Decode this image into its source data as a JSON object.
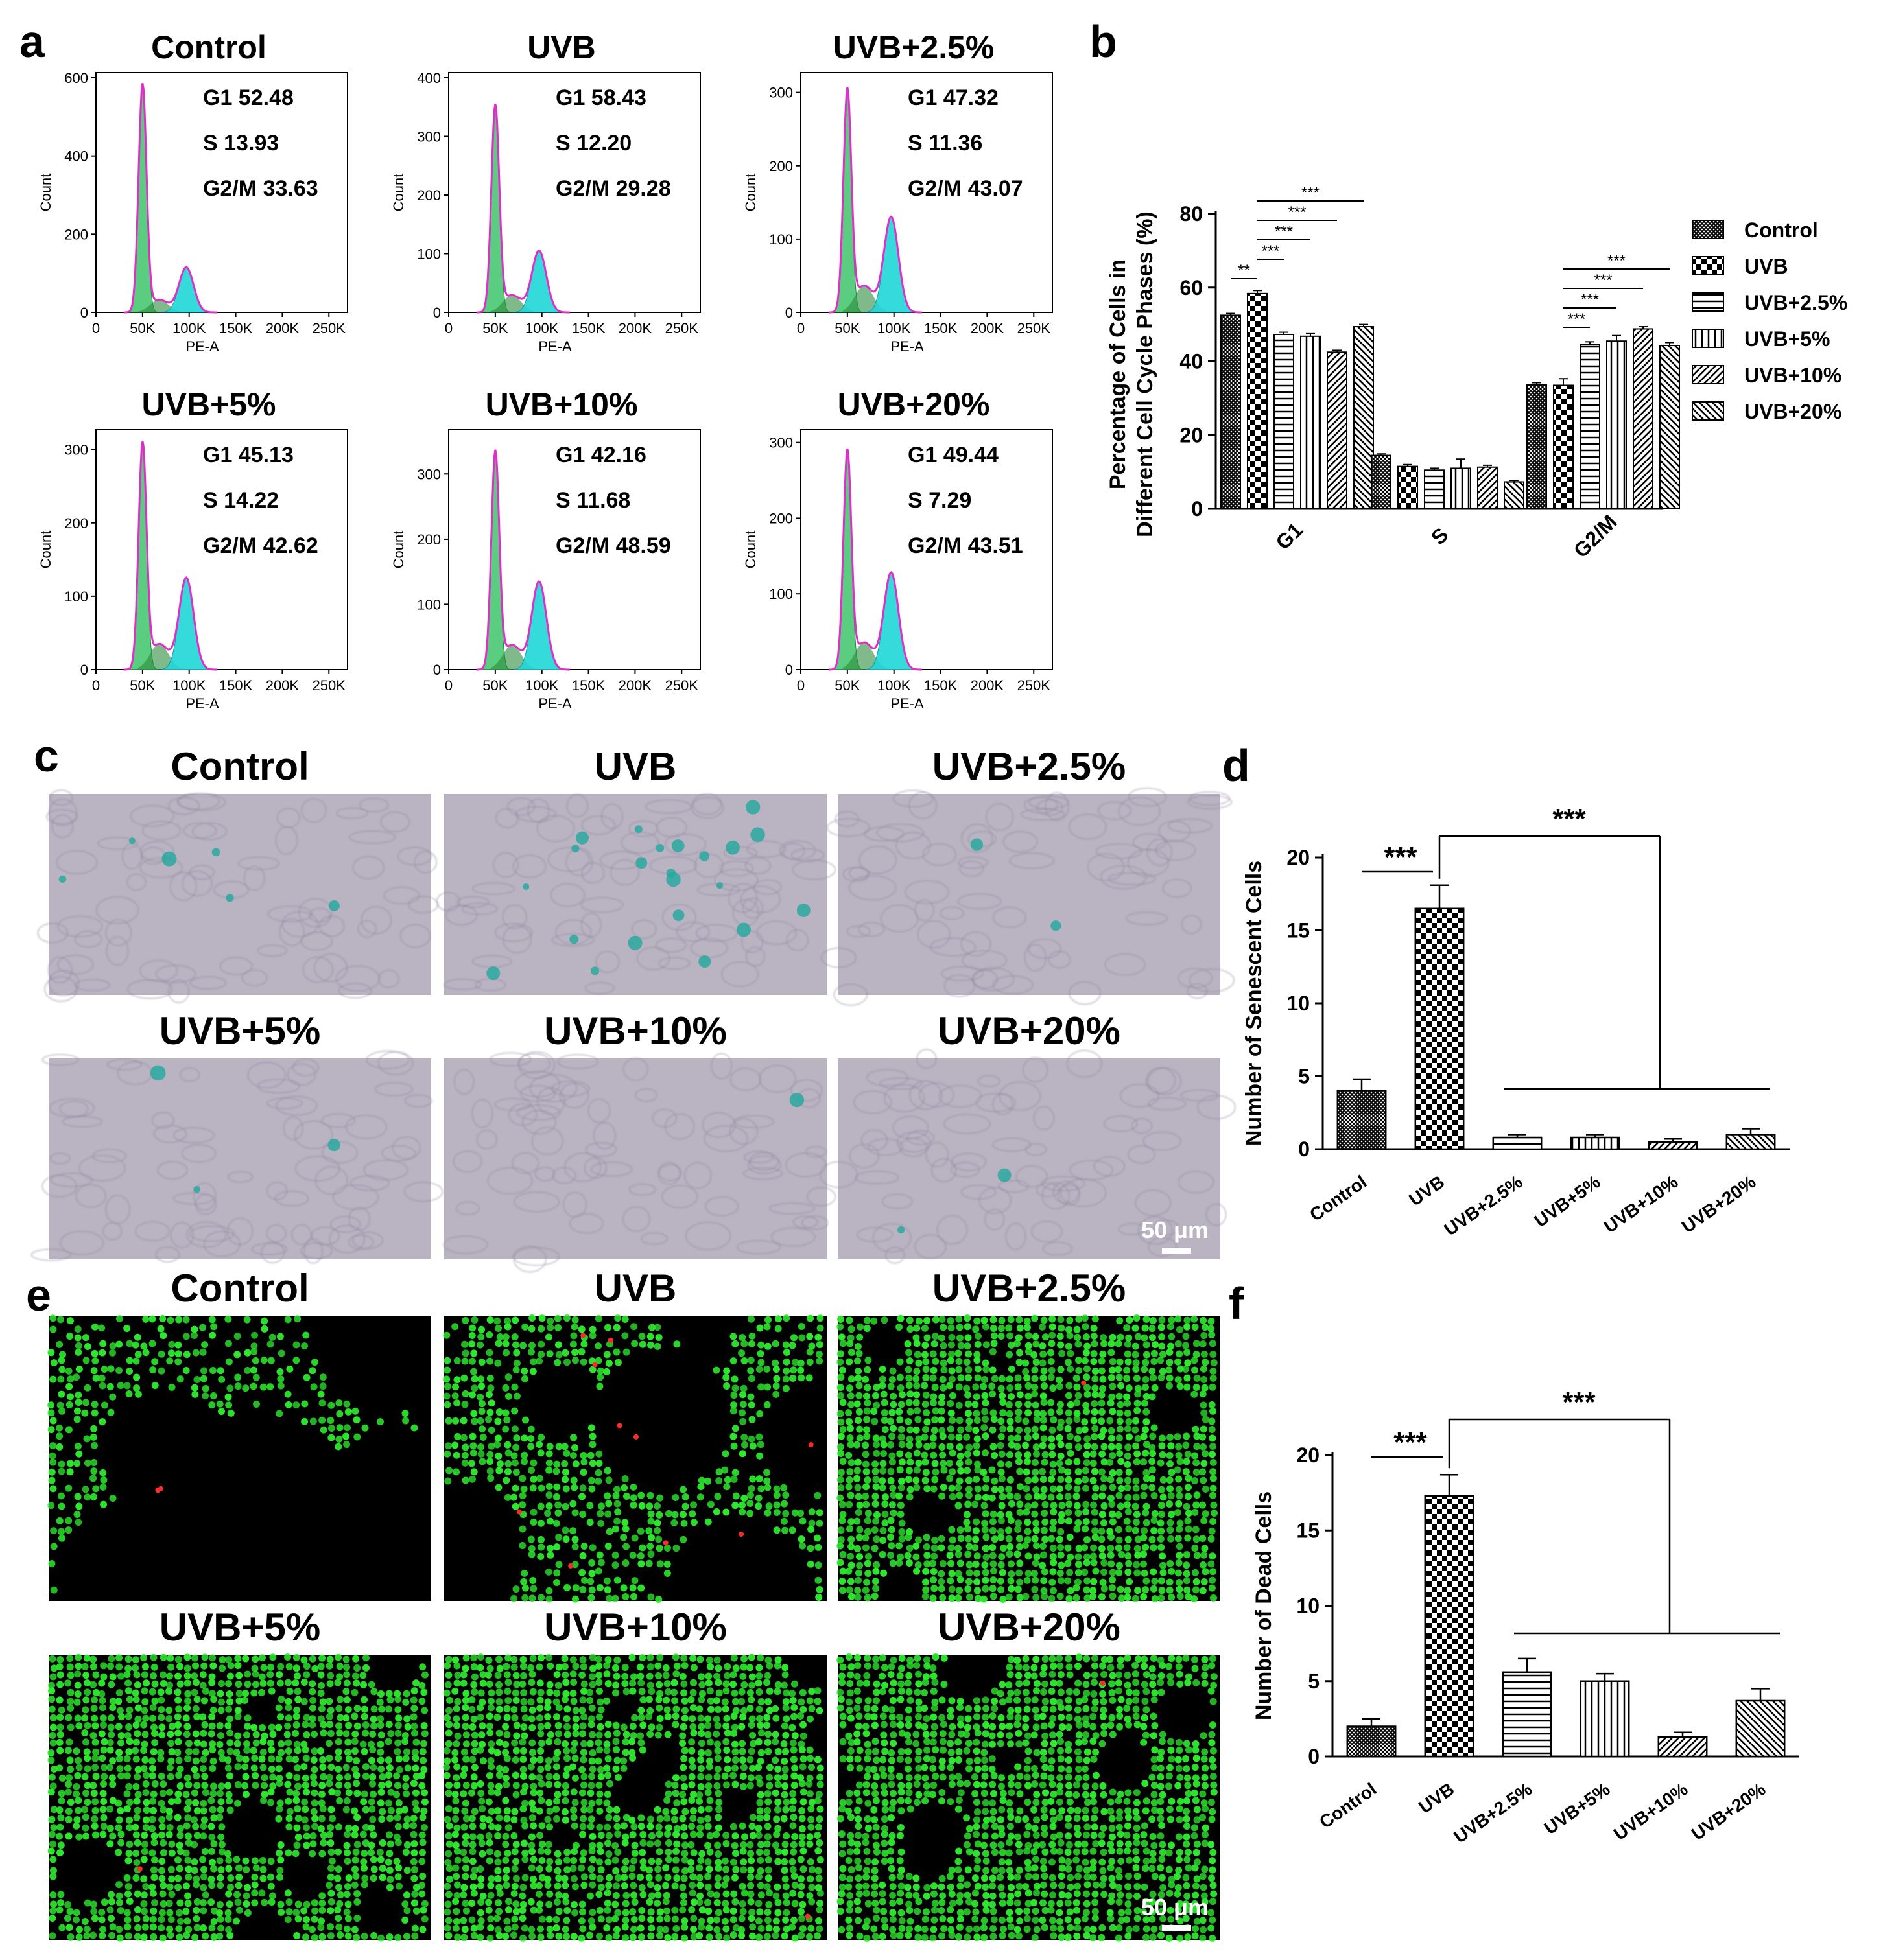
{
  "panel_letters": [
    "a",
    "b",
    "c",
    "d",
    "e",
    "f"
  ],
  "colors": {
    "g1_fill": "#3ec46a",
    "g2_fill": "#1fd6d6",
    "fit_line": "#e02fc8",
    "bar_fill": "#ffffff",
    "micro_c_bg": "#b9b3c2",
    "micro_c_cell": "#2aa8a0",
    "micro_e_bg": "#000000",
    "micro_e_live": "#2ee82e",
    "micro_e_dead": "#ff2a2a"
  },
  "scale_bar": "50 μm",
  "groups": [
    "Control",
    "UVB",
    "UVB+2.5%",
    "UVB+5%",
    "UVB+10%",
    "UVB+20%"
  ],
  "chart_data": [
    {
      "id": "a",
      "type": "histogram-panels",
      "xlabel": "PE-A",
      "ylabel": "Count",
      "x_ticks": [
        "0",
        "50K",
        "100K",
        "150K",
        "200K",
        "250K"
      ],
      "panels": [
        {
          "title": "Control",
          "y_ticks": [
            "0",
            "200",
            "400",
            "600"
          ],
          "ymax": 600,
          "peak": 580,
          "g2_peak": 115,
          "g1": "G1 52.48",
          "s": "S 13.93",
          "g2m": "G2/M 33.63"
        },
        {
          "title": "UVB",
          "y_ticks": [
            "0",
            "100",
            "200",
            "300",
            "400"
          ],
          "ymax": 400,
          "peak": 350,
          "g2_peak": 105,
          "g1": "G1 58.43",
          "s": "S 12.20",
          "g2m": "G2/M 29.28"
        },
        {
          "title": "UVB+2.5%",
          "y_ticks": [
            "0",
            "100",
            "200",
            "300"
          ],
          "ymax": 320,
          "peak": 300,
          "g2_peak": 130,
          "g1": "G1 47.32",
          "s": "S 11.36",
          "g2m": "G2/M 43.07"
        },
        {
          "title": "UVB+5%",
          "y_ticks": [
            "0",
            "100",
            "200",
            "300"
          ],
          "ymax": 320,
          "peak": 305,
          "g2_peak": 125,
          "g1": "G1 45.13",
          "s": "S 14.22",
          "g2m": "G2/M 42.62"
        },
        {
          "title": "UVB+10%",
          "y_ticks": [
            "0",
            "100",
            "200",
            "300"
          ],
          "ymax": 360,
          "peak": 330,
          "g2_peak": 135,
          "g1": "G1 42.16",
          "s": "S 11.68",
          "g2m": "G2/M 48.59"
        },
        {
          "title": "UVB+20%",
          "y_ticks": [
            "0",
            "100",
            "200",
            "300"
          ],
          "ymax": 310,
          "peak": 285,
          "g2_peak": 128,
          "g1": "G1 49.44",
          "s": "S 7.29",
          "g2m": "G2/M 43.51"
        }
      ]
    },
    {
      "id": "b",
      "type": "bar",
      "ylabel": "Percentage of Cells in Different Cell Cycle Phases (%)",
      "ylabel_lines": [
        "Percentage of Cells in",
        "Different Cell Cycle Phases (%)"
      ],
      "categories": [
        "G1",
        "S",
        "G2/M"
      ],
      "ylim": [
        0,
        80
      ],
      "y_ticks": [
        "0",
        "20",
        "40",
        "60",
        "80"
      ],
      "legend_position": "right",
      "series": [
        {
          "name": "Control",
          "pattern": "dense",
          "values": [
            52.5,
            14.5,
            33.6
          ],
          "errors": [
            0.5,
            0.4,
            0.6
          ]
        },
        {
          "name": "UVB",
          "pattern": "check",
          "values": [
            58.4,
            11.5,
            33.5
          ],
          "errors": [
            0.8,
            0.5,
            1.8
          ]
        },
        {
          "name": "UVB+2.5%",
          "pattern": "hlines",
          "values": [
            47.3,
            10.5,
            44.5
          ],
          "errors": [
            0.6,
            0.5,
            0.8
          ]
        },
        {
          "name": "UVB+5%",
          "pattern": "vlines",
          "values": [
            46.8,
            11.0,
            45.5
          ],
          "errors": [
            0.7,
            2.5,
            1.5
          ]
        },
        {
          "name": "UVB+10%",
          "pattern": "diag",
          "values": [
            42.5,
            11.3,
            48.8
          ],
          "errors": [
            0.5,
            0.5,
            0.6
          ]
        },
        {
          "name": "UVB+20%",
          "pattern": "diag2",
          "values": [
            49.4,
            7.3,
            44.3
          ],
          "errors": [
            0.6,
            0.4,
            0.8
          ]
        }
      ],
      "significance": [
        {
          "group": 0,
          "from": 0,
          "to": 1,
          "label": "**"
        },
        {
          "group": 0,
          "from": 1,
          "to": 2,
          "label": "***"
        },
        {
          "group": 0,
          "from": 1,
          "to": 3,
          "label": "***"
        },
        {
          "group": 0,
          "from": 1,
          "to": 4,
          "label": "***"
        },
        {
          "group": 0,
          "from": 1,
          "to": 5,
          "label": "***"
        },
        {
          "group": 2,
          "from": 1,
          "to": 2,
          "label": "***"
        },
        {
          "group": 2,
          "from": 1,
          "to": 3,
          "label": "***"
        },
        {
          "group": 2,
          "from": 1,
          "to": 4,
          "label": "***"
        },
        {
          "group": 2,
          "from": 1,
          "to": 5,
          "label": "***"
        }
      ]
    },
    {
      "id": "d",
      "type": "bar",
      "ylabel": "Number of Senescent Cells",
      "categories": [
        "Control",
        "UVB",
        "UVB+2.5%",
        "UVB+5%",
        "UVB+10%",
        "UVB+20%"
      ],
      "values": [
        4.0,
        16.5,
        0.8,
        0.8,
        0.5,
        1.0
      ],
      "errors": [
        0.8,
        1.6,
        0.2,
        0.2,
        0.2,
        0.4
      ],
      "patterns": [
        "dense",
        "check",
        "hlines",
        "vlines",
        "diag",
        "diag2"
      ],
      "ylim": [
        0,
        20
      ],
      "y_ticks": [
        "0",
        "5",
        "10",
        "15",
        "20"
      ],
      "sig_pair": "***",
      "sig_group": "***"
    },
    {
      "id": "f",
      "type": "bar",
      "ylabel": "Number of Dead Cells",
      "categories": [
        "Control",
        "UVB",
        "UVB+2.5%",
        "UVB+5%",
        "UVB+10%",
        "UVB+20%"
      ],
      "values": [
        2.0,
        17.3,
        5.6,
        5.0,
        1.3,
        3.7
      ],
      "errors": [
        0.5,
        1.4,
        0.9,
        0.5,
        0.3,
        0.8
      ],
      "patterns": [
        "dense",
        "check",
        "hlines",
        "vlines",
        "diag",
        "diag2"
      ],
      "ylim": [
        0,
        20
      ],
      "y_ticks": [
        "0",
        "5",
        "10",
        "15",
        "20"
      ],
      "sig_pair": "***",
      "sig_group": "***"
    }
  ]
}
